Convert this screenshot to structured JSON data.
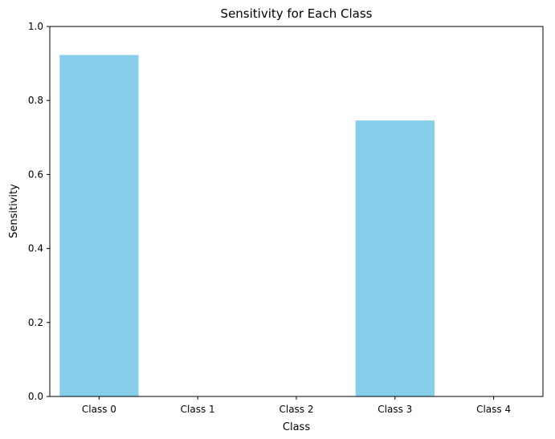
{
  "chart_data": {
    "type": "bar",
    "title": "Sensitivity for Each Class",
    "xlabel": "Class",
    "ylabel": "Sensitivity",
    "categories": [
      "Class 0",
      "Class 1",
      "Class 2",
      "Class 3",
      "Class 4"
    ],
    "values": [
      0.923,
      0.0,
      0.0,
      0.746,
      0.0
    ],
    "ylim": [
      0,
      1
    ],
    "yticks": [
      0.0,
      0.2,
      0.4,
      0.6,
      0.8,
      1.0
    ],
    "ytick_labels": [
      "0.0",
      "0.2",
      "0.4",
      "0.6",
      "0.8",
      "1.0"
    ],
    "bar_color": "#87ceeb",
    "grid": false,
    "legend": "none"
  }
}
